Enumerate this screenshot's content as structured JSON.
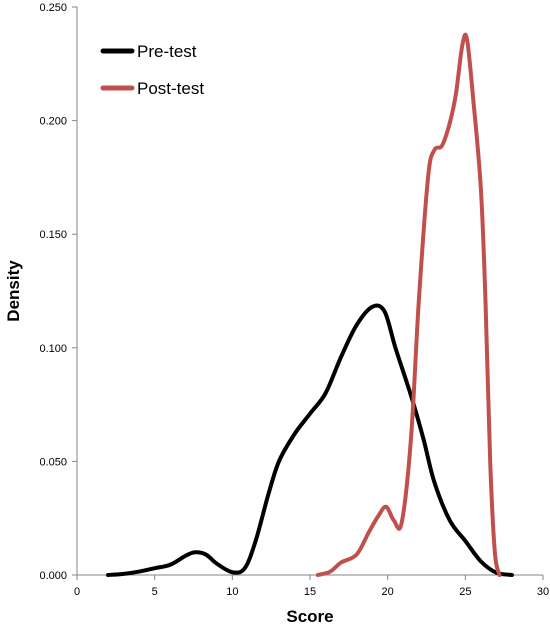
{
  "chart_data": {
    "type": "line",
    "title": "",
    "xlabel": "Score",
    "ylabel": "Density",
    "xlim": [
      0,
      30
    ],
    "ylim": [
      0,
      0.25
    ],
    "x_ticks": [
      0,
      5,
      10,
      15,
      20,
      25,
      30
    ],
    "x_tick_labels": [
      "0",
      "5",
      "10",
      "15",
      "20",
      "25",
      "30"
    ],
    "y_ticks": [
      0,
      0.05,
      0.1,
      0.15,
      0.2,
      0.25
    ],
    "y_tick_labels": [
      "0.000",
      "0.050",
      "0.100",
      "0.150",
      "0.200",
      "0.250"
    ],
    "grid": false,
    "legend_position": "top-left",
    "series": [
      {
        "name": "Pre-test",
        "color": "#000000",
        "points": [
          [
            2.0,
            0.0
          ],
          [
            3.0,
            0.0005
          ],
          [
            4.0,
            0.0015
          ],
          [
            5.0,
            0.003
          ],
          [
            6.0,
            0.0045
          ],
          [
            7.0,
            0.0085
          ],
          [
            7.6,
            0.01
          ],
          [
            8.3,
            0.009
          ],
          [
            9.0,
            0.005
          ],
          [
            10.0,
            0.0012
          ],
          [
            10.8,
            0.003
          ],
          [
            11.5,
            0.015
          ],
          [
            12.3,
            0.035
          ],
          [
            13.0,
            0.05
          ],
          [
            14.0,
            0.062
          ],
          [
            15.0,
            0.071
          ],
          [
            16.0,
            0.08
          ],
          [
            17.0,
            0.096
          ],
          [
            18.0,
            0.11
          ],
          [
            19.0,
            0.118
          ],
          [
            19.8,
            0.116
          ],
          [
            20.5,
            0.1
          ],
          [
            21.5,
            0.079
          ],
          [
            22.3,
            0.06
          ],
          [
            23.0,
            0.041
          ],
          [
            24.0,
            0.024
          ],
          [
            25.0,
            0.015
          ],
          [
            26.0,
            0.006
          ],
          [
            27.0,
            0.001
          ],
          [
            28.0,
            0.0
          ]
        ]
      },
      {
        "name": "Post-test",
        "color": "#c0504d",
        "points": [
          [
            15.5,
            0.0
          ],
          [
            16.3,
            0.0015
          ],
          [
            17.0,
            0.0055
          ],
          [
            18.0,
            0.009
          ],
          [
            18.8,
            0.019
          ],
          [
            19.4,
            0.026
          ],
          [
            19.9,
            0.03
          ],
          [
            20.4,
            0.024
          ],
          [
            20.9,
            0.023
          ],
          [
            21.5,
            0.06
          ],
          [
            22.0,
            0.12
          ],
          [
            22.6,
            0.175
          ],
          [
            23.0,
            0.187
          ],
          [
            23.5,
            0.189
          ],
          [
            24.0,
            0.199
          ],
          [
            24.4,
            0.212
          ],
          [
            24.8,
            0.233
          ],
          [
            25.1,
            0.236
          ],
          [
            25.5,
            0.21
          ],
          [
            26.0,
            0.17
          ],
          [
            26.3,
            0.12
          ],
          [
            26.6,
            0.05
          ],
          [
            26.9,
            0.01
          ],
          [
            27.2,
            0.0
          ]
        ]
      }
    ]
  }
}
